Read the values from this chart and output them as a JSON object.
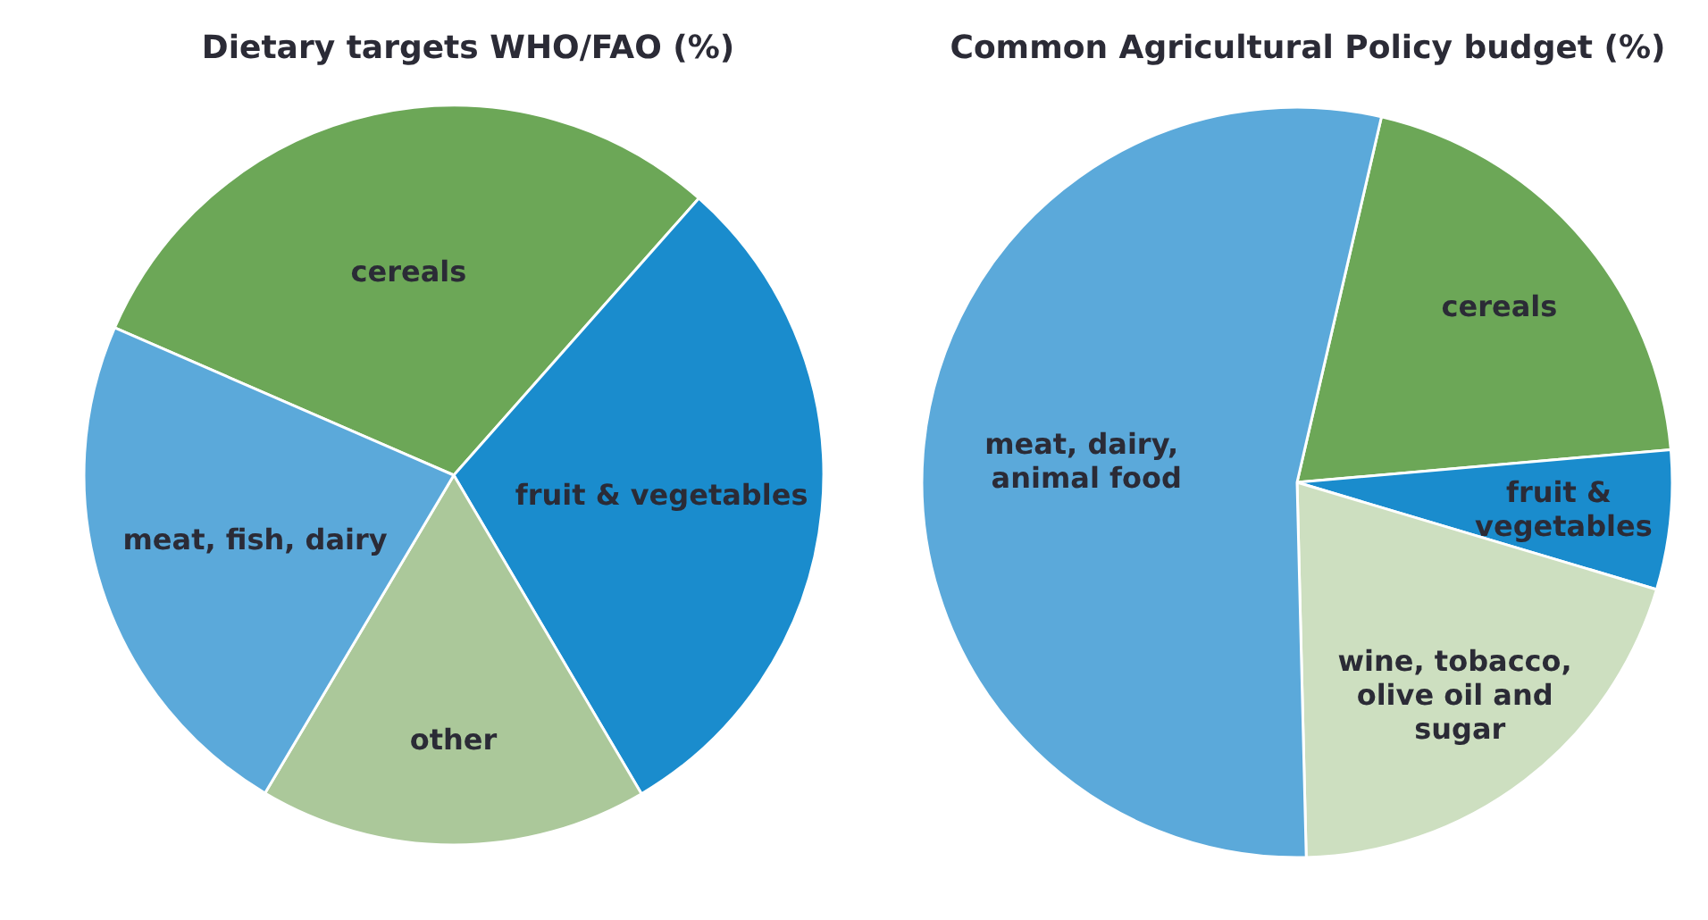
{
  "chart_data": [
    {
      "type": "pie",
      "title": "Dietary targets WHO/FAO (%)",
      "categories": [
        "cereals",
        "fruit & vegetables",
        "other",
        "meat, fish, dairy"
      ],
      "values": [
        30,
        30,
        17,
        23
      ],
      "colors": [
        "#6ca757",
        "#1a8ccd",
        "#abc89a",
        "#5ba9da"
      ]
    },
    {
      "type": "pie",
      "title": "Common Agricultural Policy budget (%)",
      "categories": [
        "cereals",
        "fruit & vegetables",
        "wine, tobacco, olive oil and sugar",
        "meat, dairy, animal food"
      ],
      "values": [
        20,
        6,
        20,
        54
      ],
      "colors": [
        "#6ca757",
        "#1a8ccd",
        "#cddfc0",
        "#5ba9da"
      ]
    }
  ]
}
